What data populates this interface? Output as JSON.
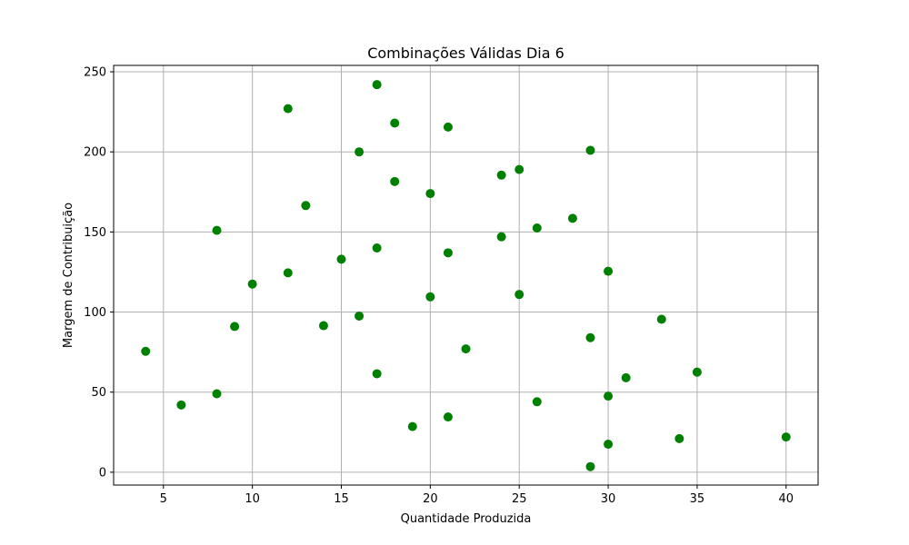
{
  "chart_data": {
    "type": "scatter",
    "title": "Combinações Válidas Dia 6",
    "xlabel": "Quantidade Produzida",
    "ylabel": "Margem de Contribuição",
    "xlim": [
      2.2,
      41.8
    ],
    "ylim": [
      -8,
      254
    ],
    "xticks": [
      5,
      10,
      15,
      20,
      25,
      30,
      35,
      40
    ],
    "yticks": [
      0,
      50,
      100,
      150,
      200,
      250
    ],
    "grid": true,
    "marker_color": "#008000",
    "points": [
      {
        "x": 4,
        "y": 75.5
      },
      {
        "x": 6,
        "y": 42
      },
      {
        "x": 8,
        "y": 151
      },
      {
        "x": 8,
        "y": 49
      },
      {
        "x": 9,
        "y": 91
      },
      {
        "x": 10,
        "y": 117.5
      },
      {
        "x": 12,
        "y": 227
      },
      {
        "x": 12,
        "y": 124.5
      },
      {
        "x": 13,
        "y": 166.5
      },
      {
        "x": 14,
        "y": 91.5
      },
      {
        "x": 15,
        "y": 133
      },
      {
        "x": 16,
        "y": 200
      },
      {
        "x": 16,
        "y": 97.5
      },
      {
        "x": 17,
        "y": 242
      },
      {
        "x": 17,
        "y": 140
      },
      {
        "x": 17,
        "y": 61.5
      },
      {
        "x": 18,
        "y": 218
      },
      {
        "x": 18,
        "y": 181.5
      },
      {
        "x": 19,
        "y": 28.5
      },
      {
        "x": 20,
        "y": 174
      },
      {
        "x": 20,
        "y": 109.5
      },
      {
        "x": 21,
        "y": 215.5
      },
      {
        "x": 21,
        "y": 137
      },
      {
        "x": 21,
        "y": 34.5
      },
      {
        "x": 22,
        "y": 77
      },
      {
        "x": 24,
        "y": 185.5
      },
      {
        "x": 24,
        "y": 147
      },
      {
        "x": 25,
        "y": 189
      },
      {
        "x": 25,
        "y": 111
      },
      {
        "x": 26,
        "y": 152.5
      },
      {
        "x": 26,
        "y": 44
      },
      {
        "x": 28,
        "y": 158.5
      },
      {
        "x": 29,
        "y": 201
      },
      {
        "x": 29,
        "y": 84
      },
      {
        "x": 29,
        "y": 3.5
      },
      {
        "x": 30,
        "y": 125.5
      },
      {
        "x": 30,
        "y": 47.5
      },
      {
        "x": 30,
        "y": 17.5
      },
      {
        "x": 31,
        "y": 59
      },
      {
        "x": 33,
        "y": 95.5
      },
      {
        "x": 34,
        "y": 21
      },
      {
        "x": 35,
        "y": 62.5
      },
      {
        "x": 40,
        "y": 22
      }
    ]
  }
}
